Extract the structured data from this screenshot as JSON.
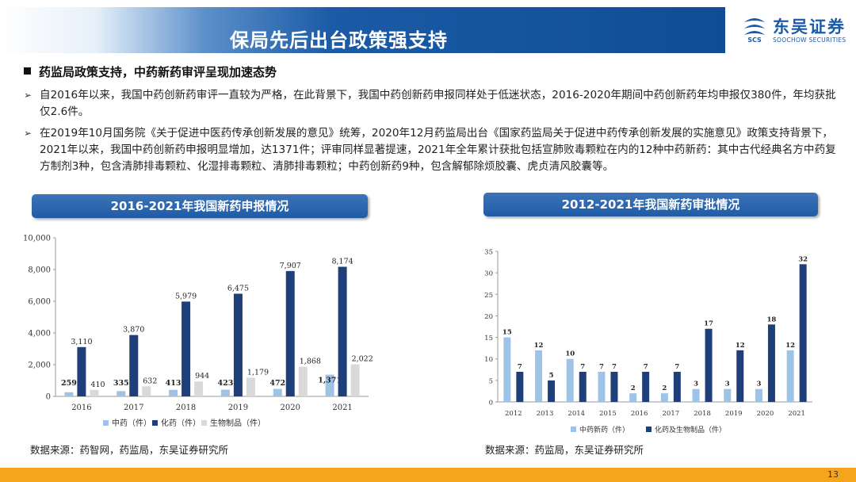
{
  "header": {
    "title": "保局先后出台政策强支持",
    "logo_name": "东吴证券",
    "logo_en": "SOOCHOW SECURITIES",
    "logo_mark": "SCS"
  },
  "section_heading": "药监局政策支持，中药新药审评呈现加速态势",
  "paragraphs": [
    "自2016年以来，我国中药创新药审评一直较为严格，在此背景下，我国中药创新药申报同样处于低迷状态，2016-2020年期间中药创新药年均申报仅380件，年均获批仅2.6件。",
    "在2019年10月国务院《关于促进中医药传承创新发展的意见》统筹，2020年12月药监局出台《国家药监局关于促进中药传承创新发展的实施意见》政策支持背景下，2021年以来，我国中药创新药申报明显增加，达1371件；评审同样显著提速，2021年全年累计获批包括宣肺败毒颗粒在内的12种中药新药：其中古代经典名方中药复方制剂3种，包含清肺排毒颗粒、化湿排毒颗粒、清肺排毒颗粒；中药创新药9种，包含解郁除烦胶囊、虎贞清风胶囊等。"
  ],
  "chart_data": [
    {
      "type": "bar",
      "title": "2016-2021年我国新药申报情况",
      "categories": [
        "2016",
        "2017",
        "2018",
        "2019",
        "2020",
        "2021"
      ],
      "series": [
        {
          "name": "中药（件）",
          "values": [
            259,
            335,
            413,
            423,
            472,
            1371
          ],
          "color": "#9dc3e6"
        },
        {
          "name": "化药（件）",
          "values": [
            3110,
            3870,
            5979,
            6475,
            7907,
            8174
          ],
          "color": "#1f3f7a"
        },
        {
          "name": "生物制品（件）",
          "values": [
            410,
            632,
            944,
            1179,
            1868,
            2022
          ],
          "color": "#d9d9d9"
        }
      ],
      "value_labels": [
        [
          "259",
          "335",
          "413",
          "423",
          "472",
          "1,371"
        ],
        [
          "3,110",
          "3,870",
          "5,979",
          "6,475",
          "7,907",
          "8,174"
        ],
        [
          "410",
          "632",
          "944",
          "1,179",
          "1,868",
          "2,022"
        ]
      ],
      "ylim": [
        0,
        10000
      ],
      "yticks": [
        "0",
        "2,000",
        "4,000",
        "6,000",
        "8,000",
        "10,000"
      ],
      "yticks_values": [
        0,
        2000,
        4000,
        6000,
        8000,
        10000
      ],
      "legend_position": "bottom",
      "grid": false,
      "source": "数据来源：药智网，药监局，东吴证券研究所"
    },
    {
      "type": "bar",
      "title": "2012-2021年我国新药审批情况",
      "categories": [
        "2012",
        "2013",
        "2014",
        "2015",
        "2016",
        "2017",
        "2018",
        "2019",
        "2020",
        "2021"
      ],
      "series": [
        {
          "name": "中药新药（件）",
          "values": [
            15,
            12,
            10,
            7,
            2,
            2,
            3,
            3,
            3,
            12
          ],
          "color": "#9dc3e6"
        },
        {
          "name": "化药及生物制品（件）",
          "values": [
            7,
            5,
            7,
            7,
            7,
            7,
            17,
            12,
            18,
            32
          ],
          "color": "#1f3f7a"
        }
      ],
      "ylim": [
        0,
        35
      ],
      "yticks": [
        "0",
        "5",
        "10",
        "15",
        "20",
        "25",
        "30",
        "35"
      ],
      "yticks_values": [
        0,
        5,
        10,
        15,
        20,
        25,
        30,
        35
      ],
      "legend_position": "bottom",
      "grid": false,
      "source": "数据来源：药监局，东吴证券研究所"
    }
  ],
  "page_number": "13"
}
